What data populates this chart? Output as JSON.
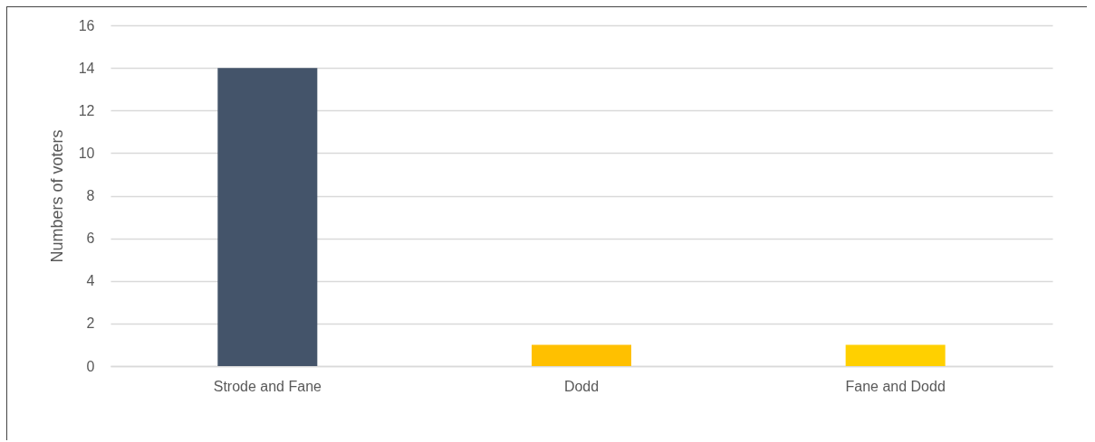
{
  "chart_data": {
    "type": "bar",
    "ylabel": "Numbers of voters",
    "categories": [
      "Strode and Fane",
      "Dodd",
      "Fane and Dodd"
    ],
    "values": [
      14,
      1,
      1
    ],
    "colors": [
      "#44546a",
      "#ffc000",
      "#ffd000"
    ],
    "ylim": [
      0,
      16
    ],
    "yticks": [
      0,
      2,
      4,
      6,
      8,
      10,
      12,
      14,
      16
    ],
    "grid": "y",
    "legend": false
  }
}
